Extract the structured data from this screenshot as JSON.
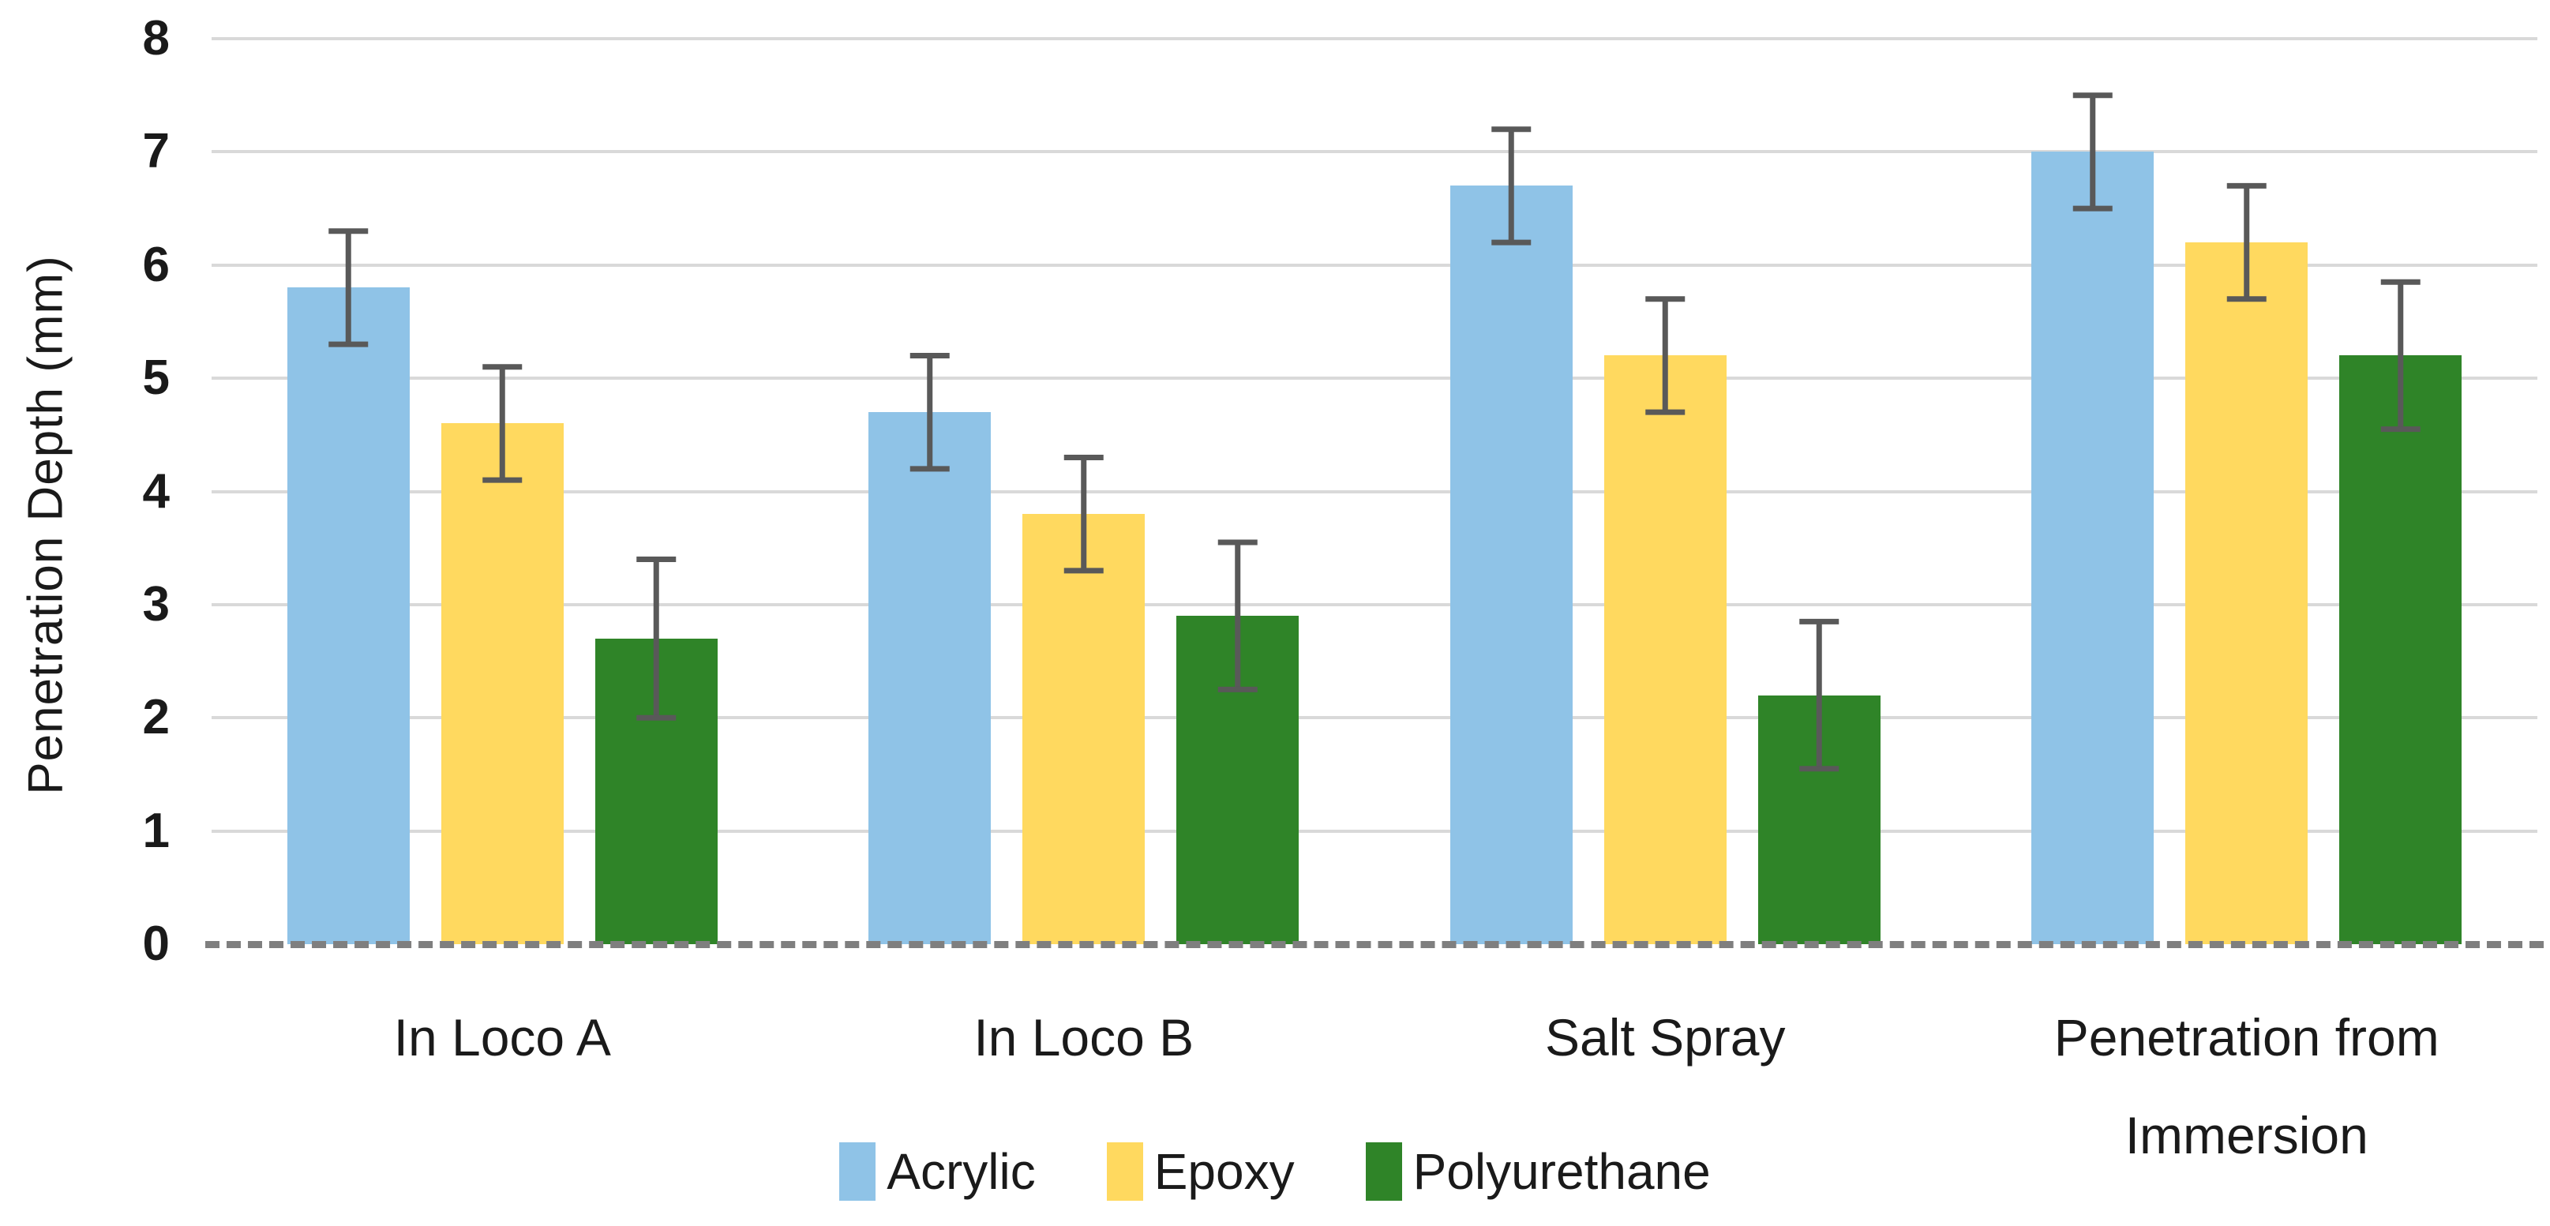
{
  "chart_data": {
    "type": "bar",
    "title": "",
    "xlabel": "",
    "ylabel": "Penetration Depth (mm)",
    "ylim": [
      0,
      8
    ],
    "y_tick_labels": [
      "0",
      "1",
      "2",
      "3",
      "4",
      "5",
      "6",
      "7",
      "8"
    ],
    "grid": "horizontal",
    "legend_position": "bottom",
    "categories": [
      "In Loco A",
      "In Loco B",
      "Salt Spray",
      "Penetration from Immersion"
    ],
    "series": [
      {
        "name": "Acrylic",
        "color": "#8FC3E7",
        "values": [
          5.8,
          4.7,
          6.7,
          7.0
        ],
        "errors": [
          0.5,
          0.5,
          0.5,
          0.5
        ]
      },
      {
        "name": "Epoxy",
        "color": "#FFD95F",
        "values": [
          4.6,
          3.8,
          5.2,
          6.2
        ],
        "errors": [
          0.5,
          0.5,
          0.5,
          0.5
        ]
      },
      {
        "name": "Polyurethane",
        "color": "#2F8428",
        "values": [
          2.7,
          2.9,
          2.2,
          5.2
        ],
        "errors": [
          0.7,
          0.65,
          0.65,
          0.65
        ]
      }
    ],
    "colors": {
      "gridline": "#D9D9D9",
      "baseline": "#7F7F7F",
      "error_bar": "#595959",
      "text": "#1A1A1A"
    }
  }
}
